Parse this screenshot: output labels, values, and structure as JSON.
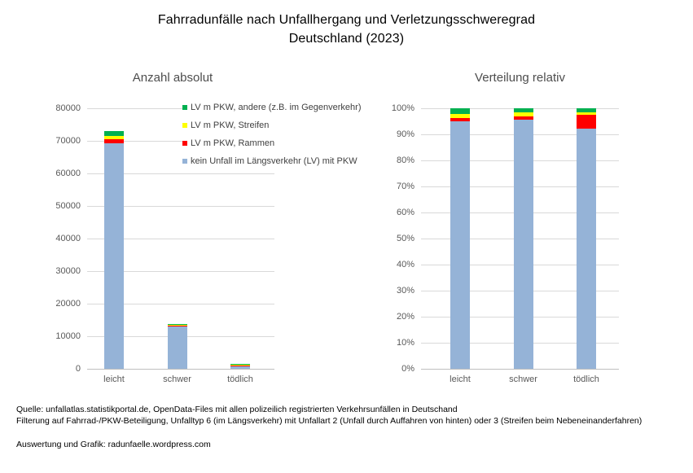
{
  "title": {
    "line1": "Fahrradunfälle nach Unfallhergang und Verletzungsschweregrad",
    "line2": "Deutschland (2023)"
  },
  "charts": {
    "absolute": {
      "title": "Anzahl absolut"
    },
    "relative": {
      "title": "Verteilung relativ"
    }
  },
  "legend": {
    "items": [
      {
        "label": "LV m PKW, andere (z.B. im Gegenverkehr)",
        "color": "#00B050"
      },
      {
        "label": "LV m PKW, Streifen",
        "color": "#FFFF00"
      },
      {
        "label": "LV m PKW, Rammen",
        "color": "#FF0000"
      },
      {
        "label": "kein Unfall im Längsverkehr (LV) mit PKW",
        "color": "#95B3D7"
      }
    ]
  },
  "colors": {
    "grid": "#D9D9D9",
    "axis": "#BFBFBF",
    "axis_text": "#595959",
    "bar_blue": "#95B3D7",
    "bar_red": "#FF0000",
    "bar_yellow": "#FFFF00",
    "bar_green": "#00B050"
  },
  "chart_data": [
    {
      "type": "bar",
      "stacked": true,
      "title": "Anzahl absolut",
      "categories": [
        "leicht",
        "schwer",
        "tödlich"
      ],
      "series": [
        {
          "name": "kein Unfall im Längsverkehr (LV) mit PKW",
          "color": "#95B3D7",
          "values": [
            69300,
            13050,
            645
          ]
        },
        {
          "name": "LV m PKW, Rammen",
          "color": "#FF0000",
          "values": [
            1100,
            190,
            38
          ]
        },
        {
          "name": "LV m PKW, Streifen",
          "color": "#FFFF00",
          "values": [
            1100,
            200,
            6
          ]
        },
        {
          "name": "LV m PKW, andere (z.B. im Gegenverkehr)",
          "color": "#00B050",
          "values": [
            1500,
            220,
            11
          ]
        }
      ],
      "xlabel": "",
      "ylabel": "",
      "ylim": [
        0,
        80000
      ],
      "y_tick_step": 10000,
      "y_tick_labels": [
        "0",
        "10000",
        "20000",
        "30000",
        "40000",
        "50000",
        "60000",
        "70000",
        "80000"
      ],
      "grid": true,
      "legend_position": "overlay-top-right"
    },
    {
      "type": "bar",
      "stacked": true,
      "normalized": true,
      "title": "Verteilung relativ",
      "categories": [
        "leicht",
        "schwer",
        "tödlich"
      ],
      "series": [
        {
          "name": "kein Unfall im Längsverkehr (LV) mit PKW",
          "color": "#95B3D7",
          "values": [
            94.9,
            95.5,
            92.1
          ]
        },
        {
          "name": "LV m PKW, Rammen",
          "color": "#FF0000",
          "values": [
            1.5,
            1.4,
            5.4
          ]
        },
        {
          "name": "LV m PKW, Streifen",
          "color": "#FFFF00",
          "values": [
            1.5,
            1.5,
            0.9
          ]
        },
        {
          "name": "LV m PKW, andere (z.B. im Gegenverkehr)",
          "color": "#00B050",
          "values": [
            2.1,
            1.6,
            1.6
          ]
        }
      ],
      "xlabel": "",
      "ylabel": "",
      "ylim": [
        0,
        100
      ],
      "y_tick_step": 10,
      "y_tick_labels": [
        "0%",
        "10%",
        "20%",
        "30%",
        "40%",
        "50%",
        "60%",
        "70%",
        "80%",
        "90%",
        "100%"
      ],
      "grid": true,
      "legend_position": "none"
    }
  ],
  "footer": {
    "source_line": "Quelle: unfallatlas.statistikportal.de, OpenData-Files mit allen polizeilich registrierten Verkehrsunfällen in Deutschand",
    "filter_line": "Filterung auf Fahrrad-/PKW-Beteiligung, Unfalltyp 6 (im Längsverkehr) mit Unfallart 2 (Unfall durch Auffahren von hinten) oder 3 (Streifen beim Nebeneinanderfahren)",
    "credit_line": "Auswertung und Grafik: radunfaelle.wordpress.com"
  }
}
